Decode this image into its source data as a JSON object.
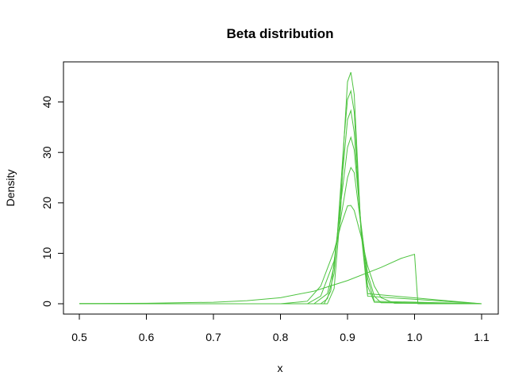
{
  "chart_data": {
    "type": "line",
    "title": "Beta distribution",
    "xlabel": "x",
    "ylabel": "Density",
    "xlim": [
      0.5,
      1.1
    ],
    "ylim": [
      0,
      46
    ],
    "xticks": [
      "0.5",
      "0.6",
      "0.7",
      "0.8",
      "0.9",
      "1.0",
      "1.1"
    ],
    "yticks": [
      "0",
      "10",
      "20",
      "30",
      "40"
    ],
    "grid": false,
    "legend": "none",
    "line_color": "#4dc33f",
    "series": [
      {
        "x": [
          0.5,
          0.6,
          0.7,
          0.75,
          0.8,
          0.85,
          0.9,
          0.95,
          0.98,
          1.0,
          1.005,
          1.1
        ],
        "y": [
          0.05,
          0.1,
          0.3,
          0.6,
          1.2,
          2.5,
          4.6,
          7.2,
          9.0,
          9.8,
          0.0,
          0.0
        ]
      },
      {
        "x": [
          0.5,
          0.8,
          0.84,
          0.86,
          0.88,
          0.89,
          0.9,
          0.905,
          0.91,
          0.92,
          0.93,
          0.94,
          0.95,
          0.97,
          1.1
        ],
        "y": [
          0,
          0,
          0.5,
          3.5,
          10.5,
          15.5,
          19.4,
          19.5,
          18.5,
          13.5,
          7.5,
          3.5,
          1.2,
          0.1,
          0
        ]
      },
      {
        "x": [
          0.5,
          0.84,
          0.86,
          0.88,
          0.89,
          0.9,
          0.905,
          0.91,
          0.92,
          0.93,
          0.94,
          0.95,
          1.1
        ],
        "y": [
          0,
          0,
          1.5,
          8.5,
          17.0,
          25.0,
          27.0,
          26.0,
          15.5,
          6.0,
          1.5,
          0.2,
          0
        ]
      },
      {
        "x": [
          0.5,
          0.85,
          0.87,
          0.88,
          0.89,
          0.9,
          0.905,
          0.91,
          0.92,
          0.93,
          0.94,
          1.1
        ],
        "y": [
          0,
          0,
          2.0,
          7.5,
          20.0,
          31.0,
          33.0,
          30.5,
          16.0,
          5.0,
          0.5,
          0
        ]
      },
      {
        "x": [
          0.5,
          0.86,
          0.87,
          0.88,
          0.89,
          0.9,
          0.905,
          0.91,
          0.92,
          0.93,
          0.94,
          1.1
        ],
        "y": [
          0,
          0,
          1.0,
          6.0,
          22.0,
          36.5,
          38.3,
          34.0,
          15.0,
          3.5,
          0.3,
          0
        ]
      },
      {
        "x": [
          0.5,
          0.865,
          0.875,
          0.885,
          0.895,
          0.9,
          0.905,
          0.91,
          0.92,
          0.93,
          1.1
        ],
        "y": [
          0,
          0,
          2.5,
          14.0,
          33.0,
          40.5,
          42.2,
          38.0,
          15.0,
          2.0,
          0
        ]
      },
      {
        "x": [
          0.5,
          0.87,
          0.88,
          0.89,
          0.895,
          0.9,
          0.905,
          0.91,
          0.92,
          0.93,
          1.1
        ],
        "y": [
          0,
          0,
          3.0,
          19.0,
          33.0,
          44.0,
          45.9,
          41.5,
          14.5,
          1.5,
          0
        ]
      }
    ]
  }
}
